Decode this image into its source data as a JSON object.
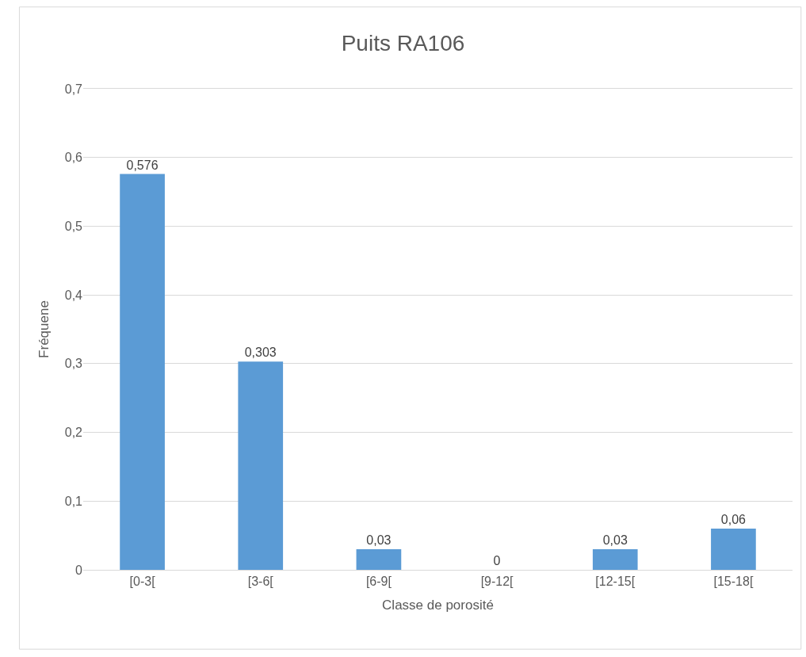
{
  "chart_data": {
    "type": "bar",
    "title": "Puits RA106",
    "xlabel": "Classe de porosité",
    "ylabel": "Fréquene",
    "categories": [
      "[0-3[",
      "[3-6[",
      "[6-9[",
      "[9-12[",
      "[12-15[",
      "[15-18["
    ],
    "values": [
      0.576,
      0.303,
      0.03,
      0,
      0.03,
      0.06
    ],
    "value_labels": [
      "0,576",
      "0,303",
      "0,03",
      "0",
      "0,03",
      "0,06"
    ],
    "color": "#5b9bd5",
    "ylim": [
      0,
      0.7
    ],
    "yticks": [
      0,
      {
        "value": 0.1,
        "label": "0,1"
      },
      {
        "value": 0.2,
        "label": "0,2"
      },
      {
        "value": 0.3,
        "label": "0,3"
      },
      {
        "value": 0.4,
        "label": "0,4"
      },
      {
        "value": 0.5,
        "label": "0,5"
      },
      {
        "value": 0.6,
        "label": "0,6"
      },
      {
        "value": 0.7,
        "label": "0,7"
      }
    ],
    "grid": "y",
    "legend": false
  }
}
